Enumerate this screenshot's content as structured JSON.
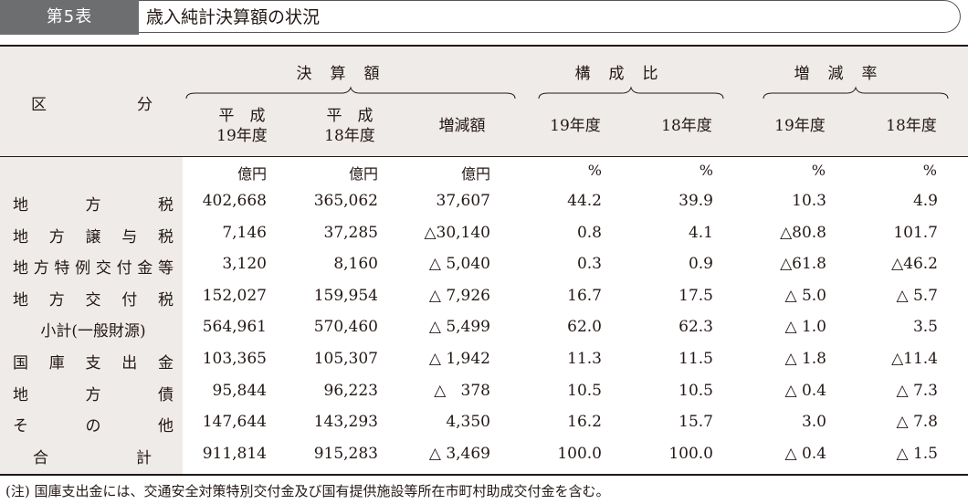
{
  "title": {
    "tab": "第5表",
    "text": "歳入純計決算額の状況"
  },
  "header": {
    "stub": [
      "区",
      "分"
    ],
    "groups": {
      "settlement": "決算額",
      "composition": "構成比",
      "change_rate": "増減率"
    },
    "subcols": {
      "h19_line1": "平　成",
      "h19_line2": "19年度",
      "h18_line1": "平　成",
      "h18_line2": "18年度",
      "diff": "増減額",
      "comp19": "19年度",
      "comp18": "18年度",
      "rate19": "19年度",
      "rate18": "18年度"
    }
  },
  "units": [
    "億円",
    "億円",
    "億円",
    "%",
    "%",
    "%",
    "%"
  ],
  "rows": [
    {
      "label": "地方税",
      "values": [
        "402,668",
        "365,062",
        "37,607",
        "44.2",
        "39.9",
        "10.3",
        "4.9"
      ]
    },
    {
      "label": "地方譲与税",
      "values": [
        "7,146",
        "37,285",
        "△30,140",
        "0.8",
        "4.1",
        "△80.8",
        "101.7"
      ]
    },
    {
      "label": "地方特例交付金等",
      "values": [
        "3,120",
        "8,160",
        "△ 5,040",
        "0.3",
        "0.9",
        "△61.8",
        "△46.2"
      ]
    },
    {
      "label": "地方交付税",
      "values": [
        "152,027",
        "159,954",
        "△ 7,926",
        "16.7",
        "17.5",
        "△ 5.0",
        "△ 5.7"
      ]
    },
    {
      "label": "小計(一般財源)",
      "values": [
        "564,961",
        "570,460",
        "△ 5,499",
        "62.0",
        "62.3",
        "△ 1.0",
        "3.5"
      ]
    },
    {
      "label": "国庫支出金",
      "values": [
        "103,365",
        "105,307",
        "△ 1,942",
        "11.3",
        "11.5",
        "△ 1.8",
        "△11.4"
      ]
    },
    {
      "label": "地方債",
      "values": [
        "95,844",
        "96,223",
        "△   378",
        "10.5",
        "10.5",
        "△ 0.4",
        "△ 7.3"
      ]
    },
    {
      "label": "その他",
      "values": [
        "147,644",
        "143,293",
        "4,350",
        "16.2",
        "15.7",
        "3.0",
        "△ 7.8"
      ]
    },
    {
      "label": "合計",
      "values": [
        "911,814",
        "915,283",
        "△ 3,469",
        "100.0",
        "100.0",
        "△ 0.4",
        "△ 1.5"
      ]
    }
  ],
  "note": "(注) 国庫支出金には、交通安全対策特別交付金及び国有提供施設等所在市町村助成交付金を含む。"
}
